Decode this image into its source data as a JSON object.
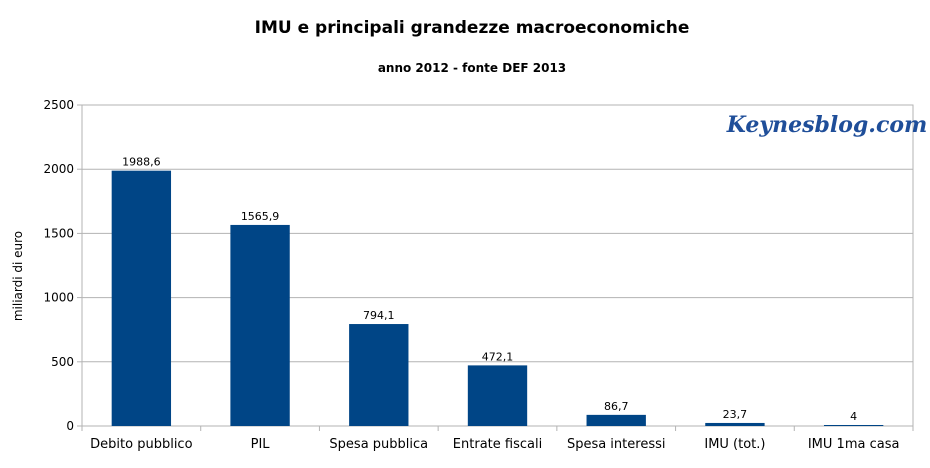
{
  "chart_data": {
    "type": "bar",
    "title": "IMU e principali grandezze macroeconomiche",
    "subtitle": "anno 2012 - fonte DEF 2013",
    "xlabel": "",
    "ylabel": "miliardi di euro",
    "ylim": [
      0,
      2500
    ],
    "yticks": [
      0,
      500,
      1000,
      1500,
      2000,
      2500
    ],
    "grid": true,
    "categories": [
      "Debito pubblico",
      "PIL",
      "Spesa pubblica",
      "Entrate fiscali",
      "Spesa interessi",
      "IMU (tot.)",
      "IMU 1ma casa"
    ],
    "values": [
      1988.6,
      1565.9,
      794.1,
      472.1,
      86.7,
      23.7,
      4
    ],
    "data_labels": [
      "1988,6",
      "1565,9",
      "794,1",
      "472,1",
      "86,7",
      "23,7",
      "4"
    ],
    "bar_color": "#004586",
    "watermark": "Keynesblog.com",
    "watermark_color": "#1f4e99"
  }
}
